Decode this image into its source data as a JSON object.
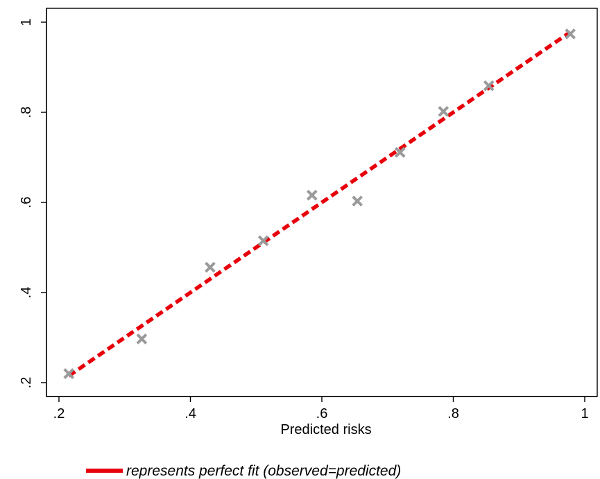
{
  "chart_data": {
    "type": "scatter",
    "title": "",
    "xlabel": "Predicted risks",
    "ylabel": "",
    "xlim": [
      0.2,
      1.0
    ],
    "ylim": [
      0.2,
      1.0
    ],
    "x_ticks": [
      0.2,
      0.4,
      0.6,
      0.8,
      1.0
    ],
    "x_tick_labels": [
      ".2",
      ".4",
      ".6",
      ".8",
      "1"
    ],
    "y_ticks": [
      0.2,
      0.4,
      0.6,
      0.8,
      1.0
    ],
    "y_tick_labels": [
      ".2",
      ".4",
      ".6",
      ".8",
      "1"
    ],
    "grid": false,
    "legend_position": "bottom-center",
    "series": [
      {
        "type": "scatter",
        "marker": "x",
        "color": "#9a9a9a",
        "points": [
          {
            "x": 0.215,
            "y": 0.22
          },
          {
            "x": 0.326,
            "y": 0.297
          },
          {
            "x": 0.43,
            "y": 0.456
          },
          {
            "x": 0.511,
            "y": 0.515
          },
          {
            "x": 0.585,
            "y": 0.616
          },
          {
            "x": 0.654,
            "y": 0.603
          },
          {
            "x": 0.719,
            "y": 0.711
          },
          {
            "x": 0.785,
            "y": 0.802
          },
          {
            "x": 0.854,
            "y": 0.859
          },
          {
            "x": 0.978,
            "y": 0.974
          }
        ]
      },
      {
        "type": "line",
        "style": "dashed",
        "color": "#e8000b",
        "legend_label": "represents perfect fit (observed=predicted)",
        "points": [
          {
            "x": 0.215,
            "y": 0.215
          },
          {
            "x": 0.978,
            "y": 0.978
          }
        ]
      }
    ]
  }
}
